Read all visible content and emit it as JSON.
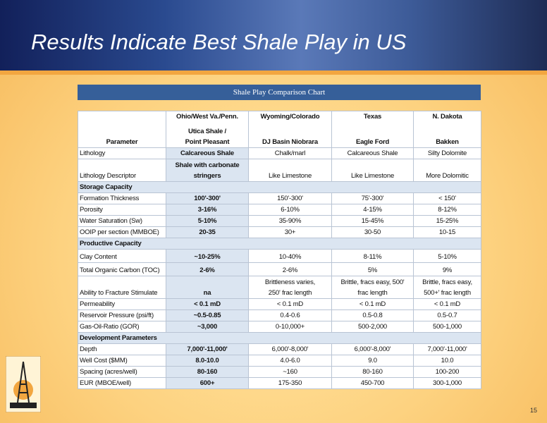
{
  "title": "Results Indicate Best Shale Play in US",
  "table": {
    "title": "Shale Play Comparison Chart",
    "header": {
      "parameter": "Parameter",
      "regions": [
        "Ohio/West Va./Penn.",
        "Wyoming/Colorado",
        "Texas",
        "N. Dakota"
      ],
      "plays": [
        [
          "Utica Shale /",
          "Point Pleasant"
        ],
        "DJ Basin Niobrara",
        "Eagle Ford",
        "Bakken"
      ]
    },
    "rows": [
      {
        "cells": [
          "Lithology",
          "Calcareous Shale",
          "Chalk/marl",
          "Calcareous Shale",
          "Silty Dolomite"
        ]
      },
      {
        "cells": [
          "Lithology Descriptor",
          [
            "Shale with carbonate",
            "stringers"
          ],
          "Like Limestone",
          "Like Limestone",
          "More Dolomitic"
        ]
      },
      {
        "section": "Storage Capacity"
      },
      {
        "cells": [
          "Formation Thickness",
          "100'-300'",
          "150'-300'",
          "75'-300'",
          "< 150'"
        ]
      },
      {
        "cells": [
          "Porosity",
          "3-16%",
          "6-10%",
          "4-15%",
          "8-12%"
        ]
      },
      {
        "cells": [
          "Water Saturation (Sw)",
          "5-10%",
          "35-90%",
          "15-45%",
          "15-25%"
        ]
      },
      {
        "cells": [
          "OOIP per section (MMBOE)",
          "20-35",
          "30+",
          "30-50",
          "10-15"
        ]
      },
      {
        "section": "Productive Capacity"
      },
      {
        "cells": [
          "Clay Content",
          "~10-25%",
          "10-40%",
          "8-11%",
          "5-10%"
        ]
      },
      {
        "cells": [
          "Total Organic Carbon (TOC)",
          "2-6%",
          "2-6%",
          "5%",
          "9%"
        ]
      },
      {
        "cells": [
          "Ability to Fracture Stimulate",
          "na",
          [
            "Brittleness varies,",
            "250' frac length"
          ],
          [
            "Brittle, fracs easy, 500'",
            "frac length"
          ],
          [
            "Brittle, fracs easy,",
            "500+' frac length"
          ]
        ]
      },
      {
        "cells": [
          "Permeability",
          "< 0.1 mD",
          "< 0.1 mD",
          "< 0.1 mD",
          "< 0.1 mD"
        ]
      },
      {
        "cells": [
          "Reservoir Pressure (psi/ft)",
          "~0.5-0.85",
          "0.4-0.6",
          "0.5-0.8",
          "0.5-0.7"
        ]
      },
      {
        "cells": [
          "Gas-Oil-Ratio (GOR)",
          "~3,000",
          "0-10,000+",
          "500-2,000",
          "500-1,000"
        ]
      },
      {
        "section": "Development Parameters"
      },
      {
        "cells": [
          "Depth",
          "7,000'-11,000'",
          "6,000'-8,000'",
          "6,000'-8,000'",
          "7,000'-11,000'"
        ]
      },
      {
        "cells": [
          "Well Cost ($MM)",
          "8.0-10.0",
          "4.0-6.0",
          "9.0",
          "10.0"
        ]
      },
      {
        "cells": [
          "Spacing (acres/well)",
          "80-160",
          "~160",
          "80-160",
          "100-200"
        ]
      },
      {
        "cells": [
          "EUR (MBOE/well)",
          "600+",
          "175-350",
          "450-700",
          "300-1,000"
        ]
      }
    ]
  },
  "page_number": "15"
}
